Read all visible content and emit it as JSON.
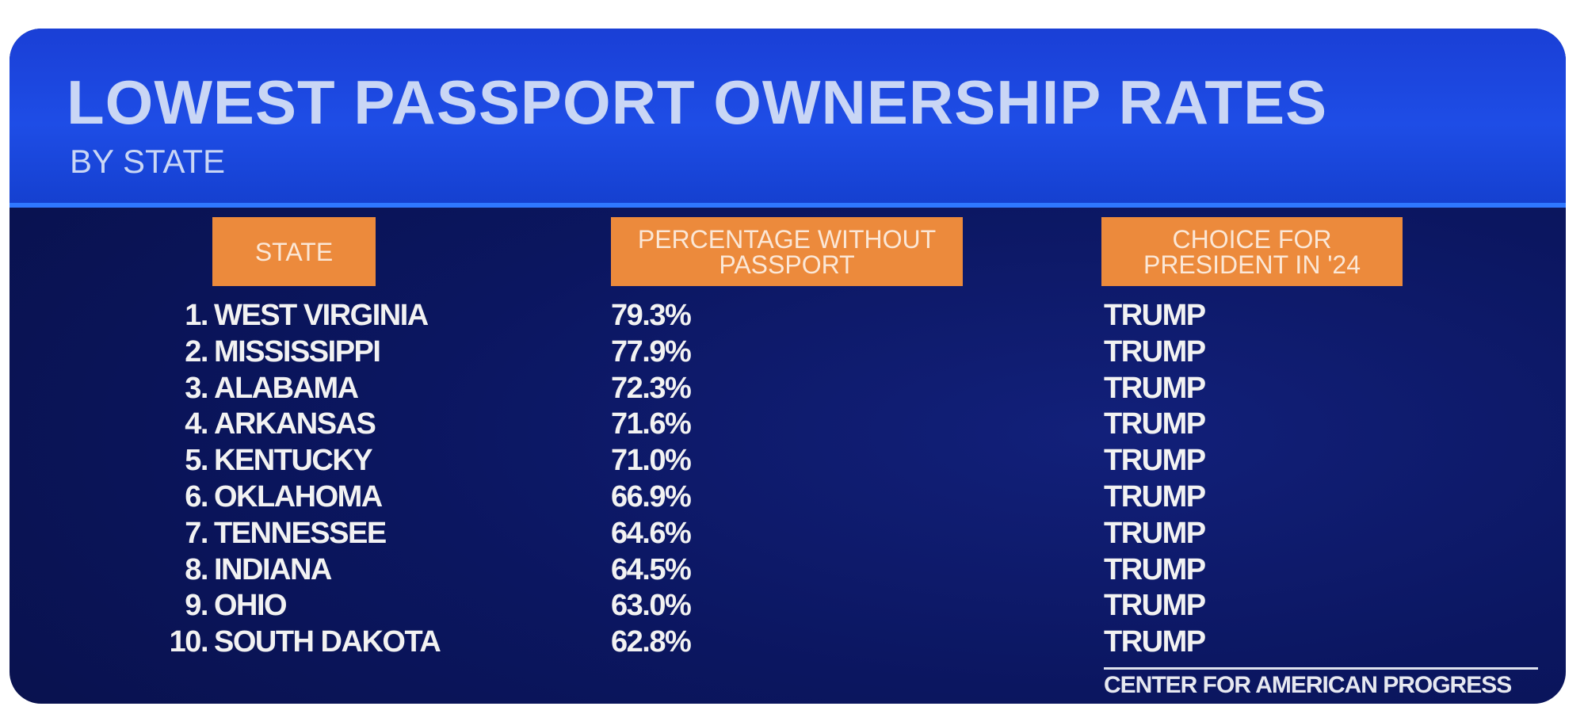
{
  "header": {
    "title": "LOWEST PASSPORT OWNERSHIP RATES",
    "subtitle": "BY STATE"
  },
  "table": {
    "columns": [
      "STATE",
      "PERCENTAGE WITHOUT PASSPORT",
      "CHOICE FOR PRESIDENT IN '24"
    ],
    "rows": [
      {
        "rank": "1.",
        "state": "WEST VIRGINIA",
        "percentage": "79.3%",
        "choice": "TRUMP"
      },
      {
        "rank": "2.",
        "state": "MISSISSIPPI",
        "percentage": "77.9%",
        "choice": "TRUMP"
      },
      {
        "rank": "3.",
        "state": "ALABAMA",
        "percentage": "72.3%",
        "choice": "TRUMP"
      },
      {
        "rank": "4.",
        "state": "ARKANSAS",
        "percentage": "71.6%",
        "choice": "TRUMP"
      },
      {
        "rank": "5.",
        "state": "KENTUCKY",
        "percentage": "71.0%",
        "choice": "TRUMP"
      },
      {
        "rank": "6.",
        "state": "OKLAHOMA",
        "percentage": "66.9%",
        "choice": "TRUMP"
      },
      {
        "rank": "7.",
        "state": "TENNESSEE",
        "percentage": "64.6%",
        "choice": "TRUMP"
      },
      {
        "rank": "8.",
        "state": "INDIANA",
        "percentage": "64.5%",
        "choice": "TRUMP"
      },
      {
        "rank": "9.",
        "state": "OHIO",
        "percentage": "63.0%",
        "choice": "TRUMP"
      },
      {
        "rank": "10.",
        "state": "SOUTH DAKOTA",
        "percentage": "62.8%",
        "choice": "TRUMP"
      }
    ]
  },
  "source": "CENTER FOR AMERICAN PROGRESS"
}
